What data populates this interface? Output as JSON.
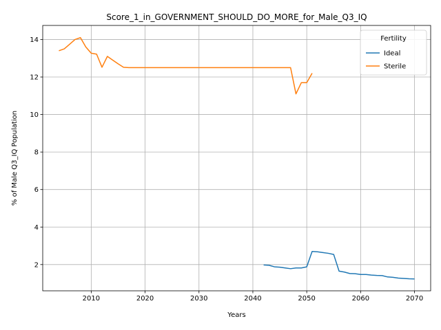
{
  "chart_data": {
    "type": "line",
    "title": "Score_1_in_GOVERNMENT_SHOULD_DO_MORE_for_Male_Q3_IQ",
    "xlabel": "Years",
    "ylabel": "% of Male Q3_IQ Population",
    "xlim": [
      2001,
      2073
    ],
    "ylim": [
      0.6,
      14.75
    ],
    "xticks": [
      2010,
      2020,
      2030,
      2040,
      2050,
      2060,
      2070
    ],
    "yticks": [
      2,
      4,
      6,
      8,
      10,
      12,
      14
    ],
    "grid": true,
    "legend": {
      "title": "Fertility",
      "placement": "top-right"
    },
    "series": [
      {
        "name": "Ideal",
        "color": "#1f77b4",
        "x": [
          2042,
          2043,
          2044,
          2045,
          2046,
          2047,
          2048,
          2049,
          2050,
          2051,
          2052,
          2053,
          2054,
          2055,
          2056,
          2057,
          2058,
          2059,
          2060,
          2061,
          2062,
          2063,
          2064,
          2065,
          2066,
          2067,
          2068,
          2069,
          2070
        ],
        "y": [
          1.98,
          1.96,
          1.88,
          1.86,
          1.82,
          1.78,
          1.82,
          1.82,
          1.88,
          2.7,
          2.68,
          2.64,
          2.6,
          2.54,
          1.65,
          1.6,
          1.52,
          1.51,
          1.47,
          1.47,
          1.44,
          1.42,
          1.41,
          1.34,
          1.32,
          1.28,
          1.26,
          1.24,
          1.23
        ]
      },
      {
        "name": "Sterile",
        "color": "#ff7f0e",
        "x": [
          2004,
          2005,
          2006,
          2007,
          2008,
          2009,
          2010,
          2011,
          2012,
          2013,
          2014,
          2015,
          2016,
          2017,
          2020,
          2025,
          2030,
          2035,
          2040,
          2045,
          2047,
          2048,
          2049,
          2050,
          2051
        ],
        "y": [
          13.4,
          13.5,
          13.75,
          14.0,
          14.1,
          13.6,
          13.27,
          13.22,
          12.52,
          13.1,
          12.9,
          12.7,
          12.52,
          12.5,
          12.5,
          12.5,
          12.5,
          12.5,
          12.5,
          12.5,
          12.5,
          11.1,
          11.7,
          11.7,
          12.2
        ]
      }
    ]
  }
}
